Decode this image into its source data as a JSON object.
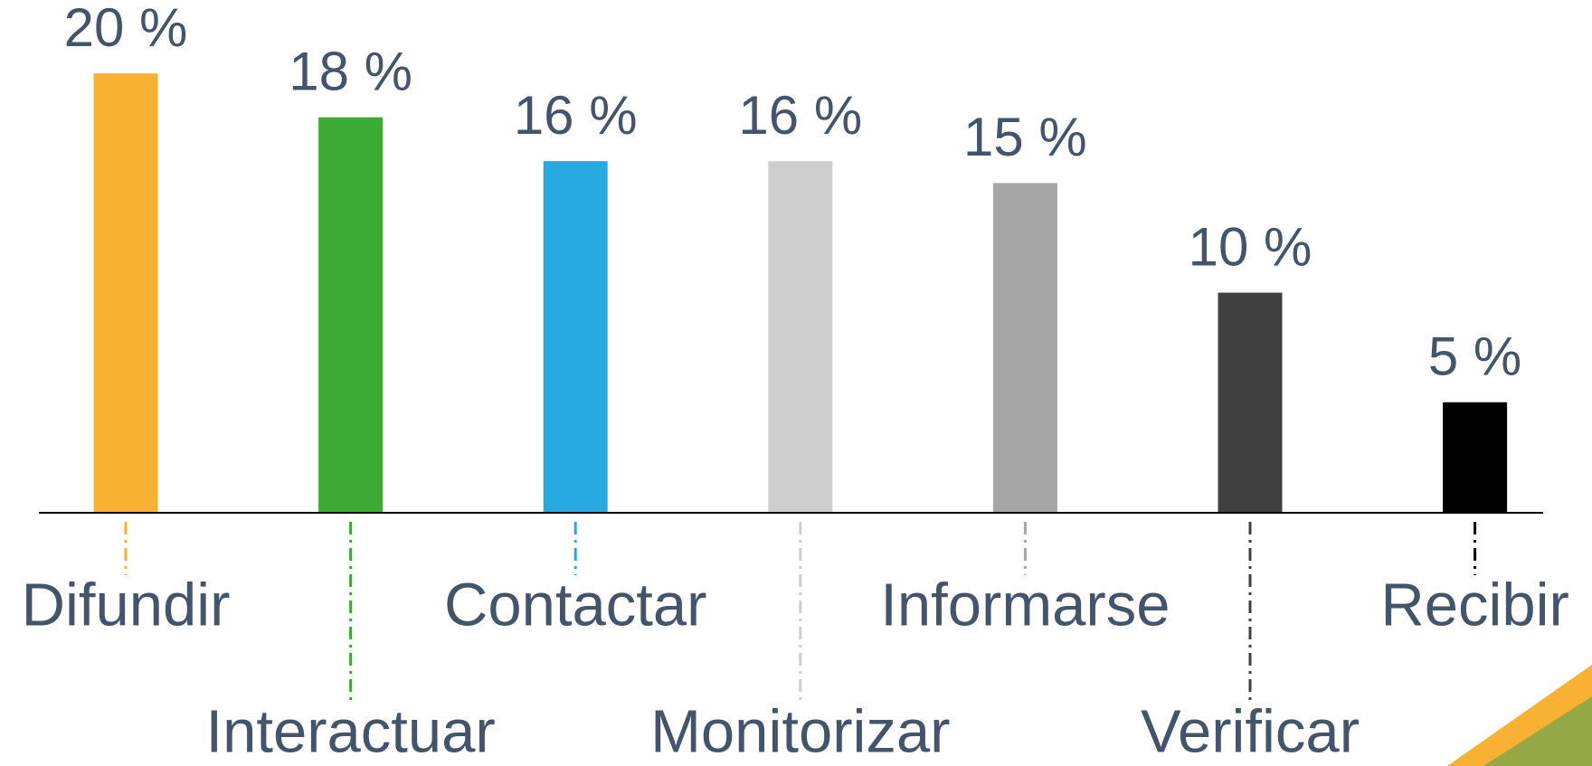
{
  "chart_data": {
    "type": "bar",
    "categories": [
      "Difundir",
      "Interactuar",
      "Contactar",
      "Monitorizar",
      "Informarse",
      "Verificar",
      "Recibir"
    ],
    "values": [
      20,
      18,
      16,
      16,
      15,
      10,
      5
    ],
    "value_labels": [
      "20 %",
      "18 %",
      "16 %",
      "16 %",
      "15 %",
      "10 %",
      "5 %"
    ],
    "colors": [
      "#f8b133",
      "#3daa35",
      "#27aae1",
      "#cfcece",
      "#a6a6a6",
      "#404040",
      "#000000"
    ]
  }
}
